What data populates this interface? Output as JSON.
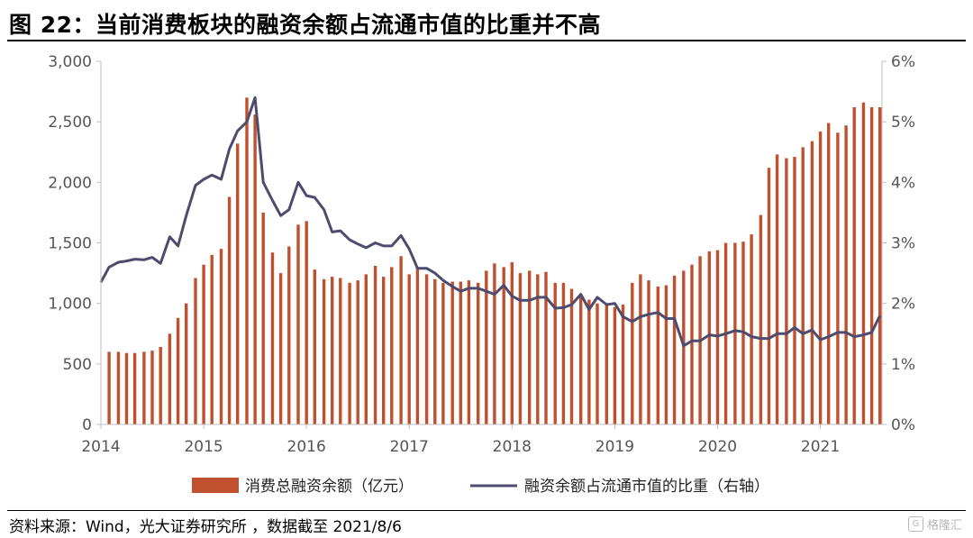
{
  "title": "图 22：当前消费板块的融资余额占流通市值的比重并不高",
  "source": "资料来源：Wind，光大证券研究所 ，数据截至 2021/8/6",
  "watermark": {
    "icon": "gelonghui-logo-icon",
    "text": "格隆汇"
  },
  "colors": {
    "bar": "#c0502e",
    "line": "#4e4c6e",
    "axis": "#bfbfbf",
    "text": "#555555"
  },
  "chart_data": {
    "type": "bar",
    "combo": "bar+line",
    "grid": false,
    "legend_position": "bottom",
    "x_tick_labels": [
      "2014",
      "2015",
      "2016",
      "2017",
      "2018",
      "2019",
      "2020",
      "2021"
    ],
    "x_tick_years": [
      2014,
      2015,
      2016,
      2017,
      2018,
      2019,
      2020,
      2021
    ],
    "x_range": [
      2014.0,
      2021.6
    ],
    "y_left": {
      "range": [
        0,
        3000
      ],
      "ticks": [
        0,
        500,
        1000,
        1500,
        2000,
        2500,
        3000
      ],
      "tick_labels": [
        "0",
        "500",
        "1,000",
        "1,500",
        "2,000",
        "2,500",
        "3,000"
      ]
    },
    "y_right": {
      "range": [
        0,
        6
      ],
      "ticks": [
        0,
        1,
        2,
        3,
        4,
        5,
        6
      ],
      "tick_labels": [
        "0%",
        "1%",
        "2%",
        "3%",
        "4%",
        "5%",
        "6%"
      ]
    },
    "series": [
      {
        "name": "消费总融资余额（亿元）",
        "type": "bar",
        "axis": "left",
        "x": [
          2014.08,
          2014.17,
          2014.25,
          2014.33,
          2014.42,
          2014.5,
          2014.58,
          2014.67,
          2014.75,
          2014.83,
          2014.92,
          2015.0,
          2015.08,
          2015.17,
          2015.25,
          2015.33,
          2015.42,
          2015.5,
          2015.58,
          2015.67,
          2015.75,
          2015.83,
          2015.92,
          2016.0,
          2016.08,
          2016.17,
          2016.25,
          2016.33,
          2016.42,
          2016.5,
          2016.58,
          2016.67,
          2016.75,
          2016.83,
          2016.92,
          2017.0,
          2017.08,
          2017.17,
          2017.25,
          2017.33,
          2017.42,
          2017.5,
          2017.58,
          2017.67,
          2017.75,
          2017.83,
          2017.92,
          2018.0,
          2018.08,
          2018.17,
          2018.25,
          2018.33,
          2018.42,
          2018.5,
          2018.58,
          2018.67,
          2018.75,
          2018.83,
          2018.92,
          2019.0,
          2019.08,
          2019.17,
          2019.25,
          2019.33,
          2019.42,
          2019.5,
          2019.58,
          2019.67,
          2019.75,
          2019.83,
          2019.92,
          2020.0,
          2020.08,
          2020.17,
          2020.25,
          2020.33,
          2020.42,
          2020.5,
          2020.58,
          2020.67,
          2020.75,
          2020.83,
          2020.92,
          2021.0,
          2021.08,
          2021.17,
          2021.25,
          2021.33,
          2021.42,
          2021.5,
          2021.58
        ],
        "values": [
          600,
          600,
          590,
          590,
          600,
          610,
          640,
          750,
          880,
          1000,
          1210,
          1320,
          1400,
          1450,
          1880,
          2320,
          2700,
          2560,
          1750,
          1420,
          1250,
          1470,
          1650,
          1680,
          1280,
          1200,
          1220,
          1210,
          1170,
          1190,
          1240,
          1310,
          1220,
          1300,
          1390,
          1240,
          1300,
          1240,
          1200,
          1170,
          1180,
          1180,
          1190,
          1170,
          1270,
          1330,
          1300,
          1340,
          1250,
          1270,
          1240,
          1260,
          1170,
          1170,
          1120,
          1060,
          1030,
          1000,
          1000,
          970,
          990,
          1170,
          1240,
          1190,
          1140,
          1150,
          1230,
          1270,
          1320,
          1390,
          1430,
          1440,
          1500,
          1500,
          1510,
          1570,
          1730,
          2120,
          2230,
          2200,
          2210,
          2290,
          2340,
          2420,
          2490,
          2410,
          2470,
          2620,
          2660,
          2620,
          2620
        ]
      },
      {
        "name": "融资余额占流通市值的比重（右轴）",
        "type": "line",
        "axis": "right",
        "x": [
          2014.0,
          2014.08,
          2014.17,
          2014.25,
          2014.33,
          2014.42,
          2014.5,
          2014.58,
          2014.67,
          2014.75,
          2014.83,
          2014.92,
          2015.0,
          2015.08,
          2015.17,
          2015.25,
          2015.33,
          2015.42,
          2015.5,
          2015.58,
          2015.67,
          2015.75,
          2015.83,
          2015.92,
          2016.0,
          2016.08,
          2016.17,
          2016.25,
          2016.33,
          2016.42,
          2016.5,
          2016.58,
          2016.67,
          2016.75,
          2016.83,
          2016.92,
          2017.0,
          2017.08,
          2017.17,
          2017.25,
          2017.33,
          2017.42,
          2017.5,
          2017.58,
          2017.67,
          2017.75,
          2017.83,
          2017.92,
          2018.0,
          2018.08,
          2018.17,
          2018.25,
          2018.33,
          2018.42,
          2018.5,
          2018.58,
          2018.67,
          2018.75,
          2018.83,
          2018.92,
          2019.0,
          2019.08,
          2019.17,
          2019.25,
          2019.33,
          2019.42,
          2019.5,
          2019.58,
          2019.67,
          2019.75,
          2019.83,
          2019.92,
          2020.0,
          2020.08,
          2020.17,
          2020.25,
          2020.33,
          2020.42,
          2020.5,
          2020.58,
          2020.67,
          2020.75,
          2020.83,
          2020.92,
          2021.0,
          2021.08,
          2021.17,
          2021.25,
          2021.33,
          2021.42,
          2021.5,
          2021.58
        ],
        "values": [
          2.35,
          2.6,
          2.68,
          2.7,
          2.73,
          2.72,
          2.76,
          2.66,
          3.1,
          2.95,
          3.45,
          3.95,
          4.05,
          4.12,
          4.05,
          4.55,
          4.85,
          5.0,
          5.4,
          4.0,
          3.7,
          3.45,
          3.55,
          4.0,
          3.78,
          3.75,
          3.55,
          3.18,
          3.2,
          3.05,
          2.98,
          2.92,
          3.0,
          2.95,
          2.95,
          3.12,
          2.9,
          2.58,
          2.58,
          2.5,
          2.38,
          2.28,
          2.2,
          2.25,
          2.25,
          2.2,
          2.15,
          2.3,
          2.12,
          2.05,
          2.05,
          2.1,
          2.1,
          1.92,
          1.93,
          1.98,
          2.15,
          1.9,
          2.1,
          1.98,
          2.0,
          1.78,
          1.7,
          1.78,
          1.82,
          1.85,
          1.75,
          1.75,
          1.3,
          1.38,
          1.38,
          1.48,
          1.46,
          1.5,
          1.55,
          1.53,
          1.45,
          1.42,
          1.42,
          1.5,
          1.5,
          1.6,
          1.5,
          1.56,
          1.4,
          1.45,
          1.52,
          1.52,
          1.45,
          1.48,
          1.52,
          1.8
        ]
      }
    ]
  }
}
